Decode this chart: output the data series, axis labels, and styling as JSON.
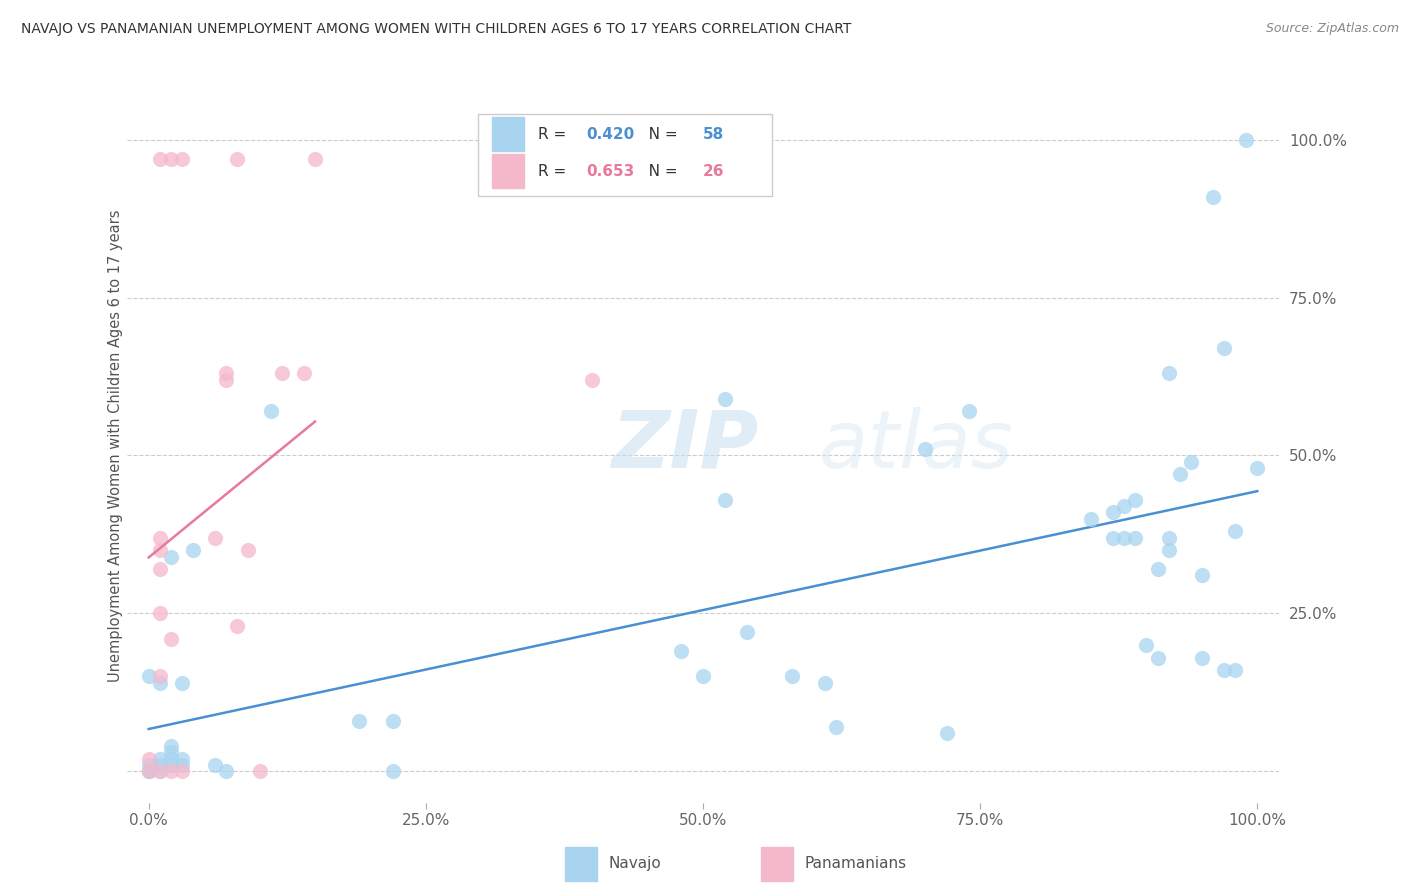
{
  "title": "NAVAJO VS PANAMANIAN UNEMPLOYMENT AMONG WOMEN WITH CHILDREN AGES 6 TO 17 YEARS CORRELATION CHART",
  "source": "Source: ZipAtlas.com",
  "ylabel": "Unemployment Among Women with Children Ages 6 to 17 years",
  "xlim": [
    -0.02,
    1.02
  ],
  "ylim": [
    -0.05,
    1.08
  ],
  "xticks": [
    0.0,
    0.25,
    0.5,
    0.75,
    1.0
  ],
  "xticklabels": [
    "0.0%",
    "25.0%",
    "50.0%",
    "75.0%",
    "100.0%"
  ],
  "yticks": [
    0.0,
    0.25,
    0.5,
    0.75,
    1.0
  ],
  "yticklabels": [
    "",
    "25.0%",
    "50.0%",
    "75.0%",
    "100.0%"
  ],
  "navajo_R": "0.420",
  "navajo_N": "58",
  "panamanian_R": "0.653",
  "panamanian_N": "26",
  "navajo_color": "#a8d4f0",
  "panamanian_color": "#f5b8cb",
  "navajo_line_color": "#4a8fd4",
  "panamanian_line_color": "#e8799a",
  "legend_label_navajo": "Navajo",
  "legend_label_panamanian": "Panamanians",
  "watermark_zip": "ZIP",
  "watermark_atlas": "atlas",
  "navajo_x": [
    0.01,
    0.01,
    0.01,
    0.01,
    0.02,
    0.02,
    0.02,
    0.02,
    0.02,
    0.03,
    0.03,
    0.03,
    0.04,
    0.0,
    0.0,
    0.0,
    0.0,
    0.06,
    0.07,
    0.11,
    0.19,
    0.22,
    0.22,
    0.48,
    0.5,
    0.52,
    0.52,
    0.54,
    0.58,
    0.61,
    0.62,
    0.7,
    0.72,
    0.74,
    0.85,
    0.87,
    0.87,
    0.88,
    0.88,
    0.89,
    0.89,
    0.9,
    0.91,
    0.91,
    0.92,
    0.92,
    0.92,
    0.93,
    0.94,
    0.95,
    0.95,
    0.96,
    0.97,
    0.97,
    0.98,
    0.98,
    0.99,
    1.0
  ],
  "navajo_y": [
    0.0,
    0.01,
    0.02,
    0.14,
    0.01,
    0.02,
    0.03,
    0.04,
    0.34,
    0.01,
    0.02,
    0.14,
    0.35,
    0.0,
    0.0,
    0.01,
    0.15,
    0.01,
    0.0,
    0.57,
    0.08,
    0.08,
    0.0,
    0.19,
    0.15,
    0.43,
    0.59,
    0.22,
    0.15,
    0.14,
    0.07,
    0.51,
    0.06,
    0.57,
    0.4,
    0.41,
    0.37,
    0.37,
    0.42,
    0.43,
    0.37,
    0.2,
    0.18,
    0.32,
    0.37,
    0.35,
    0.63,
    0.47,
    0.49,
    0.31,
    0.18,
    0.91,
    0.67,
    0.16,
    0.38,
    0.16,
    1.0,
    0.48
  ],
  "panamanian_x": [
    0.0,
    0.0,
    0.01,
    0.01,
    0.01,
    0.01,
    0.01,
    0.02,
    0.02,
    0.02,
    0.03,
    0.06,
    0.07,
    0.07,
    0.08,
    0.09,
    0.1,
    0.12,
    0.14,
    0.15,
    0.01,
    0.01,
    0.03,
    0.08,
    0.38,
    0.4
  ],
  "panamanian_y": [
    0.0,
    0.02,
    0.0,
    0.15,
    0.37,
    0.97,
    0.35,
    0.0,
    0.21,
    0.97,
    0.0,
    0.37,
    0.62,
    0.63,
    0.23,
    0.35,
    0.0,
    0.63,
    0.63,
    0.97,
    0.25,
    0.32,
    0.97,
    0.97,
    0.97,
    0.62
  ]
}
